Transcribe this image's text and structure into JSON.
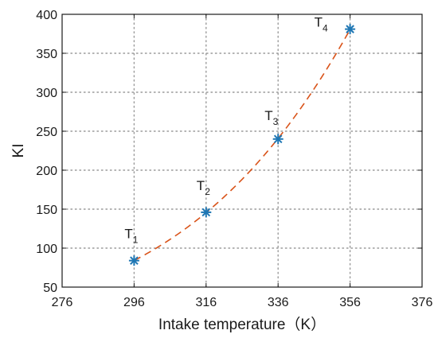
{
  "chart_data": {
    "type": "scatter",
    "xlabel": "Intake temperature（K）",
    "ylabel": "KI",
    "xlim": [
      276,
      376
    ],
    "ylim": [
      50,
      400
    ],
    "xticks": [
      276,
      296,
      316,
      336,
      356,
      376
    ],
    "yticks": [
      50,
      100,
      150,
      200,
      250,
      300,
      350,
      400
    ],
    "grid": true,
    "grid_style": "dotted",
    "series": [
      {
        "marker": "asterisk",
        "color": "#1f77b4",
        "points": [
          {
            "x": 296,
            "y": 84,
            "label": "T",
            "sub": "1"
          },
          {
            "x": 316,
            "y": 146,
            "label": "T",
            "sub": "2"
          },
          {
            "x": 336,
            "y": 240,
            "label": "T",
            "sub": "3"
          },
          {
            "x": 356,
            "y": 381,
            "label": "T",
            "sub": "4"
          }
        ]
      }
    ],
    "fit_curve": {
      "style": "dashed",
      "color": "#d95319",
      "x_range": [
        296,
        356
      ]
    }
  }
}
